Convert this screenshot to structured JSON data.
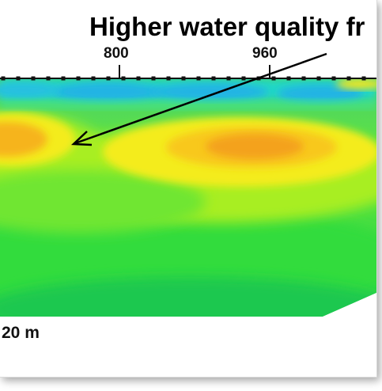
{
  "annotation": {
    "text": "Higher water quality fr"
  },
  "stations": [
    {
      "label": "800"
    },
    {
      "label": "960"
    }
  ],
  "scale": {
    "label": "20 m"
  },
  "colors": {
    "surface_blue": "#1aa6e0",
    "cyan": "#18d8d0",
    "green": "#3be23a",
    "yellow_green": "#b8f01e",
    "yellow": "#f6ee1a",
    "orange": "#f6a41c",
    "dark_orange": "#f0901e"
  }
}
